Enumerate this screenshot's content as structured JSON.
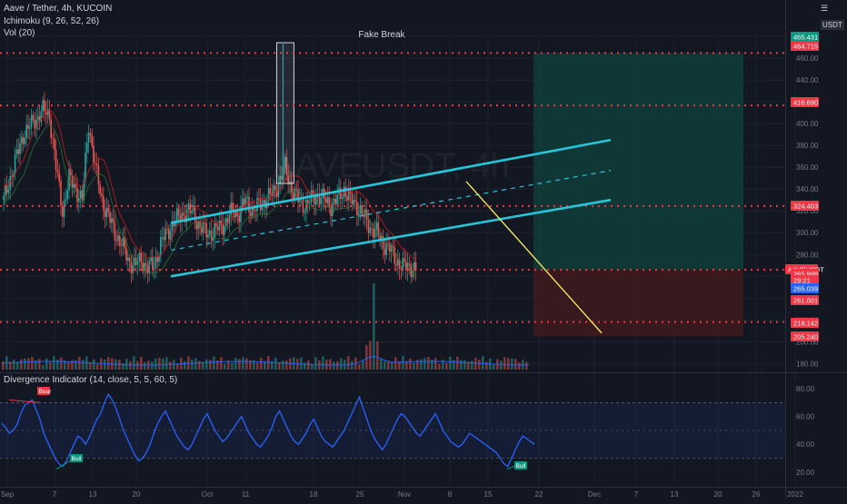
{
  "header": {
    "symbol": "Aave / Tether, 4h, KUCOIN",
    "ichimoku": "Ichimoku (9, 26, 52, 26)",
    "vol": "Vol (20)",
    "currency": "USDT"
  },
  "watermark": "AAVEUSDT, 4h",
  "colors": {
    "background": "#131722",
    "grid": "#1e222d",
    "channel": "#26c6da",
    "level": "#f23645",
    "trend": "#f5e663",
    "candle_up": "#26a69a",
    "candle_down": "#ef5350",
    "osc": "#2962ff",
    "long_zone": "#0e3d3a",
    "stop_zone": "#3d1a1e",
    "accent": "#2962ff"
  },
  "chart_data": [
    {
      "type": "candlestick",
      "symbol": "AAVEUSDT",
      "timeframe": "4h",
      "y_axis_ticks": [
        180,
        200,
        220,
        240,
        260,
        280,
        300,
        320,
        340,
        360,
        380,
        400,
        420,
        440,
        460,
        480
      ],
      "ylim": [
        172,
        490
      ],
      "x_axis_ticks": [
        "Sep",
        "7",
        "13",
        "20",
        "Oct",
        "11",
        "18",
        "25",
        "Nov",
        "8",
        "15",
        "22",
        "Dec",
        "7",
        "13",
        "20",
        "26",
        "2022"
      ],
      "price_labels": [
        {
          "value": "465.431",
          "style": "green"
        },
        {
          "value": "464.715",
          "style": "red"
        },
        {
          "value": "416.690",
          "style": "red"
        },
        {
          "value": "324.403",
          "style": "red"
        },
        {
          "value": "AAVEUSDT",
          "style": "red"
        },
        {
          "value": "265.999",
          "style": "red"
        },
        {
          "value": "29:21",
          "style": "red"
        },
        {
          "value": "265.039",
          "style": "blue"
        },
        {
          "value": "261.001",
          "style": "red"
        },
        {
          "value": "218.142",
          "style": "red"
        },
        {
          "value": "205.240",
          "style": "red"
        }
      ],
      "horizontal_levels": [
        464.715,
        416.69,
        324.403,
        265.999,
        218.142
      ],
      "annotations": [
        {
          "text": "Fake Break"
        }
      ],
      "close_path": [
        [
          0,
          330
        ],
        [
          3,
          390
        ],
        [
          6,
          412
        ],
        [
          7,
          408
        ],
        [
          8,
          360
        ],
        [
          9,
          320
        ],
        [
          10,
          350
        ],
        [
          12,
          330
        ],
        [
          13,
          400
        ],
        [
          14,
          360
        ],
        [
          15,
          330
        ],
        [
          17,
          300
        ],
        [
          18,
          290
        ],
        [
          19,
          275
        ],
        [
          20,
          270
        ],
        [
          21,
          275
        ],
        [
          22,
          268
        ],
        [
          23,
          270
        ],
        [
          24,
          290
        ],
        [
          25,
          300
        ],
        [
          26,
          310
        ],
        [
          27,
          315
        ],
        [
          28,
          320
        ],
        [
          29,
          318
        ],
        [
          30,
          305
        ],
        [
          31,
          300
        ],
        [
          32,
          300
        ],
        [
          33,
          305
        ],
        [
          34,
          310
        ],
        [
          35,
          320
        ],
        [
          36,
          318
        ],
        [
          37,
          330
        ],
        [
          38,
          320
        ],
        [
          39,
          325
        ],
        [
          40,
          330
        ],
        [
          41,
          335
        ],
        [
          42,
          345
        ],
        [
          43,
          360
        ],
        [
          44,
          340
        ],
        [
          45,
          330
        ],
        [
          46,
          325
        ],
        [
          47,
          330
        ],
        [
          48,
          335
        ],
        [
          49,
          330
        ],
        [
          50,
          325
        ],
        [
          51,
          330
        ],
        [
          52,
          340
        ],
        [
          53,
          330
        ],
        [
          54,
          325
        ],
        [
          55,
          315
        ],
        [
          56,
          305
        ],
        [
          57,
          300
        ],
        [
          58,
          290
        ],
        [
          59,
          285
        ],
        [
          60,
          275
        ],
        [
          61,
          268
        ],
        [
          62,
          270
        ],
        [
          63,
          266
        ]
      ],
      "trade_zones": {
        "entry": 266,
        "target": 464.715,
        "stop": 205.24
      },
      "channel": {
        "upper": [
          [
            15,
            309
          ],
          [
            57,
            385
          ]
        ],
        "lower": [
          [
            15,
            260
          ],
          [
            57,
            330
          ]
        ],
        "mid": [
          [
            15,
            284
          ],
          [
            57,
            357
          ]
        ]
      },
      "trendline": [
        [
          41,
          347
        ],
        [
          55,
          208
        ]
      ]
    },
    {
      "type": "line",
      "title": "Divergence Indicator (14, close, 5, 5, 60, 5)",
      "y_axis_ticks": [
        20,
        40,
        60,
        80
      ],
      "ylim": [
        12,
        84
      ],
      "band": [
        30,
        70
      ],
      "midline": 50,
      "series": [
        {
          "values": [
            55,
            52,
            48,
            50,
            54,
            62,
            68,
            70,
            72,
            65,
            58,
            48,
            42,
            36,
            30,
            26,
            24,
            28,
            34,
            40,
            46,
            44,
            40,
            45,
            52,
            58,
            62,
            70,
            76,
            72,
            66,
            58,
            50,
            44,
            38,
            32,
            28,
            30,
            34,
            40,
            48,
            55,
            60,
            64,
            58,
            52,
            46,
            42,
            38,
            36,
            40,
            46,
            52,
            58,
            62,
            56,
            50,
            46,
            42,
            44,
            48,
            52,
            56,
            60,
            54,
            48,
            44,
            40,
            38,
            42,
            46,
            52,
            60,
            64,
            58,
            52,
            46,
            42,
            40,
            44,
            48,
            54,
            58,
            52,
            46,
            42,
            40,
            38,
            42,
            46,
            50,
            56,
            62,
            68,
            74,
            66,
            58,
            50,
            44,
            40,
            36,
            40,
            46,
            52,
            58,
            62,
            60,
            56,
            52,
            48,
            46,
            50,
            54,
            58,
            62,
            56,
            50,
            46,
            42,
            40,
            38,
            40,
            44,
            48,
            46,
            44,
            42,
            40,
            38,
            36,
            34,
            30,
            26,
            24,
            30,
            36,
            42,
            46,
            44,
            42,
            40
          ]
        }
      ],
      "signals": [
        {
          "text": "Bear"
        },
        {
          "text": "Bull"
        },
        {
          "text": "Bull"
        }
      ]
    }
  ]
}
